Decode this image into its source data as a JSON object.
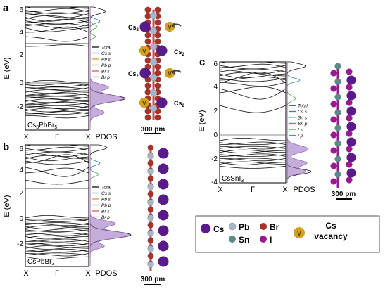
{
  "panels": {
    "a": {
      "letter": "a",
      "ylabel": "E (eV)",
      "yticks": [
        "6",
        "4",
        "2",
        "0",
        "-2"
      ],
      "xticks": [
        "X",
        "Γ",
        "X"
      ],
      "pdos_label": "PDOS",
      "compound": [
        "Cs",
        "3",
        "PbBr",
        "5"
      ],
      "scale": "300 pm",
      "site_labels": [
        "Cs",
        "2",
        "Cs",
        "2",
        "Cs",
        "2",
        "Cs",
        "2"
      ],
      "vacancy_marker": "V",
      "legend": [
        "Total",
        "Cs s",
        "Pb s",
        "Pb p",
        "Br s",
        "Br p"
      ]
    },
    "b": {
      "letter": "b",
      "ylabel": "E (eV)",
      "yticks": [
        "6",
        "4",
        "2",
        "0",
        "-2"
      ],
      "xticks": [
        "X",
        "Γ",
        "X"
      ],
      "pdos_label": "PDOS",
      "compound": [
        "CsPbBr",
        "3"
      ],
      "scale": "300 pm",
      "legend": [
        "Total",
        "Cs s",
        "Pb s",
        "Pb p",
        "Br s",
        "Br p"
      ]
    },
    "c": {
      "letter": "c",
      "ylabel": "E (eV)",
      "yticks": [
        "6",
        "4",
        "2",
        "0",
        "-2",
        "-4"
      ],
      "xticks": [
        "X",
        "Γ",
        "X"
      ],
      "pdos_label": "PDOS",
      "compound": [
        "CsSnI",
        "3"
      ],
      "scale": "300 pm",
      "legend": [
        "Total",
        "Cs s",
        "Sn s",
        "Sn p",
        "I s",
        "I p"
      ]
    }
  },
  "atom_legend": {
    "cs": "Cs",
    "pb": "Pb",
    "br": "Br",
    "sn": "Sn",
    "i": "I",
    "vacancy_marker": "V",
    "vacancy_line1": "Cs",
    "vacancy_line2": "vacancy"
  },
  "colors": {
    "total": "#111111",
    "cs_s": "#2f7fc1",
    "pb_s": "#f28e2b",
    "pb_p": "#59a14f",
    "br_s": "#e15759",
    "br_p": "#9467bd",
    "cs_atom": "#5a1a8c",
    "pb_atom": "#a8b4c8",
    "br_atom": "#a83228",
    "sn_atom": "#5c8a88",
    "i_atom": "#9c1890",
    "vacancy": "#d4a21a",
    "bond": "#c0505a"
  }
}
